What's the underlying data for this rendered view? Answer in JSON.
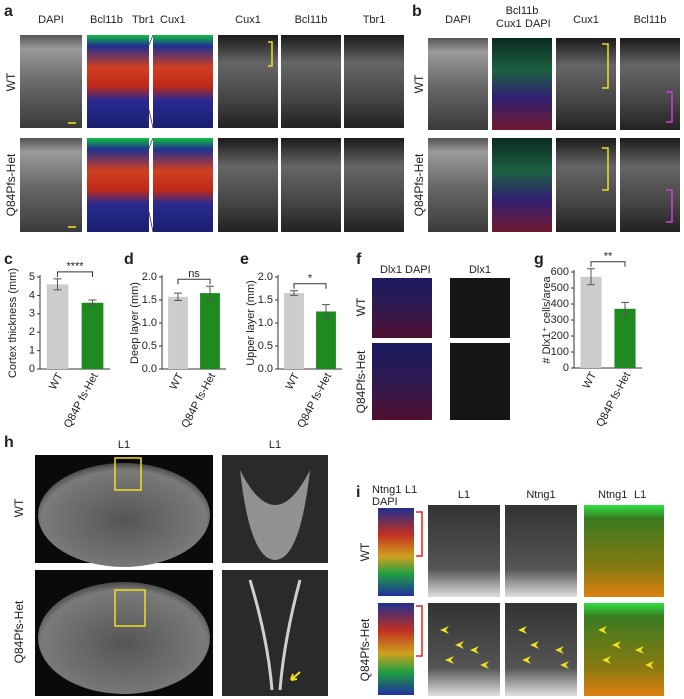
{
  "panels": {
    "a": {
      "label": "a",
      "headings": [
        {
          "text": "DAPI",
          "color": "#222222"
        },
        {
          "text": "Bcl11b",
          "color": "#e02020"
        },
        {
          "text": "Tbr1",
          "color": "#1a9a1a"
        },
        {
          "text": "Cux1",
          "color": "#2a3ad0"
        },
        {
          "text": "Cux1",
          "color": "#2a3ad0"
        },
        {
          "text": "Bcl11b",
          "color": "#e02020"
        },
        {
          "text": "Tbr1",
          "color": "#1a9a1a"
        }
      ],
      "rows": [
        "WT",
        "Q84Pfs-Het"
      ]
    },
    "b": {
      "label": "b",
      "headings": [
        {
          "text": "DAPI",
          "color": "#222222"
        },
        {
          "text": "Bcl11b",
          "color": "#e02020"
        },
        {
          "text": "Cux1",
          "color": "#1a9a1a"
        },
        {
          "text": "DAPI",
          "color": "#2a3ad0"
        },
        {
          "text": "Cux1",
          "color": "#1a9a1a"
        },
        {
          "text": "Bcl11b",
          "color": "#e02020"
        }
      ],
      "rows": [
        "WT",
        "Q84Pfs-Het"
      ]
    },
    "f": {
      "label": "f",
      "headings": [
        {
          "text": "Dlx1",
          "color": "#e02020"
        },
        {
          "text": "DAPI",
          "color": "#2a3ad0"
        },
        {
          "text": "Dlx1",
          "color": "#222222"
        }
      ],
      "rows": [
        "WT",
        "Q84Pfs-Het"
      ]
    },
    "h": {
      "label": "h",
      "headings": [
        {
          "text": "L1",
          "color": "#222222"
        },
        {
          "text": "L1",
          "color": "#222222"
        }
      ],
      "rows": [
        "WT",
        "Q84Pfs-Het"
      ]
    },
    "i": {
      "label": "i",
      "headings": [
        {
          "text": "Ntng1",
          "color": "#1a9a1a"
        },
        {
          "text": "L1",
          "color": "#e02020"
        },
        {
          "text": "DAPI",
          "color": "#2a3ad0"
        },
        {
          "text": "L1",
          "color": "#222222"
        },
        {
          "text": "Ntng1",
          "color": "#222222"
        },
        {
          "text": "Ntng1",
          "color": "#1a9a1a"
        },
        {
          "text": "L1",
          "color": "#e02020"
        }
      ],
      "rows": [
        "WT",
        "Q84Pfs-Het"
      ]
    }
  },
  "chart_data": [
    {
      "type": "bar",
      "label": "c",
      "ylabel": "Cortex thickness (mm)",
      "categories": [
        "WT",
        "Q84P fs-Het"
      ],
      "values": [
        4.6,
        3.6
      ],
      "errors": [
        0.3,
        0.15
      ],
      "colors": [
        "#cccccc",
        "#1f8a1f"
      ],
      "ylim": [
        0,
        5
      ],
      "yticks": [
        0,
        1,
        2,
        3,
        4,
        5
      ],
      "significance": "****"
    },
    {
      "type": "bar",
      "label": "d",
      "ylabel": "Deep layer (mm)",
      "categories": [
        "WT",
        "Q84P fs-Het"
      ],
      "values": [
        1.57,
        1.65
      ],
      "errors": [
        0.08,
        0.15
      ],
      "colors": [
        "#cccccc",
        "#1f8a1f"
      ],
      "ylim": [
        0,
        2
      ],
      "yticks": [
        {
          "value": 0,
          "label": "0.0"
        },
        {
          "value": 0.5,
          "label": "0.5"
        },
        {
          "value": 1,
          "label": "1.0"
        },
        {
          "value": 1.5,
          "label": "1.5"
        },
        {
          "value": 2,
          "label": "2.0"
        }
      ],
      "significance": "ns"
    },
    {
      "type": "bar",
      "label": "e",
      "ylabel": "Upper layer (mm)",
      "categories": [
        "WT",
        "Q84P fs-Het"
      ],
      "values": [
        1.65,
        1.25
      ],
      "errors": [
        0.05,
        0.15
      ],
      "colors": [
        "#cccccc",
        "#1f8a1f"
      ],
      "ylim": [
        0,
        2
      ],
      "yticks": [
        {
          "value": 0,
          "label": "0.0"
        },
        {
          "value": 0.5,
          "label": "0.5"
        },
        {
          "value": 1,
          "label": "1.0"
        },
        {
          "value": 1.5,
          "label": "1.5"
        },
        {
          "value": 2,
          "label": "2.0"
        }
      ],
      "significance": "*"
    },
    {
      "type": "bar",
      "label": "g",
      "ylabel": "# Dlx1⁺ cells/area",
      "categories": [
        "WT",
        "Q84P fs-Het"
      ],
      "values": [
        570,
        370
      ],
      "errors": [
        50,
        40
      ],
      "colors": [
        "#cccccc",
        "#1f8a1f"
      ],
      "ylim": [
        0,
        600
      ],
      "yticks": [
        0,
        100,
        200,
        300,
        400,
        500,
        600
      ],
      "significance": "**"
    }
  ]
}
